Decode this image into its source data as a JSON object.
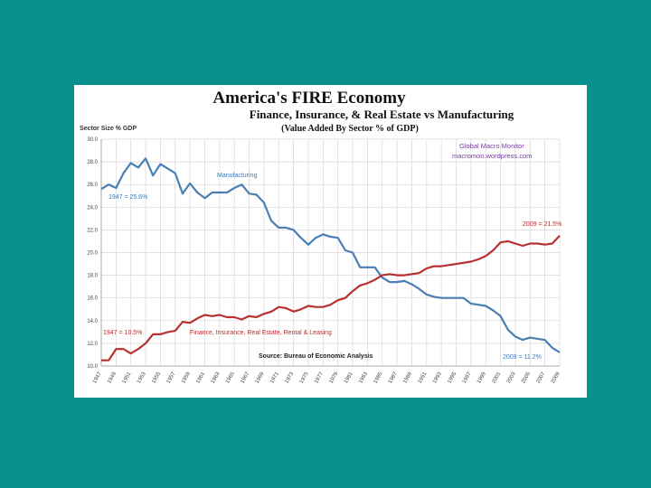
{
  "colors": {
    "background": "#0a8f8f",
    "manufacturing": "#4a7fb3",
    "fire": "#b8302f",
    "grid": "#d8d8d8"
  },
  "chart_data": {
    "type": "line",
    "title": "America's FIRE Economy",
    "subtitle": "Finance, Insurance, & Real Estate vs Manufacturing",
    "subtitle2": "(Value Added By Sector % of GDP)",
    "ylabel": "Sector Size % GDP",
    "xlabel": "",
    "ylim": [
      10,
      30
    ],
    "yticks": [
      10,
      12,
      14,
      16,
      18,
      20,
      22,
      24,
      26,
      28,
      30
    ],
    "ytick_labels": [
      "10.0",
      "12.0",
      "14.0",
      "16.0",
      "18.0",
      "20.0",
      "22.0",
      "24.0",
      "26.0",
      "28.0",
      "30.0"
    ],
    "xlim": [
      1947,
      2009
    ],
    "xtick_labels": [
      "1947",
      "1949",
      "1951",
      "1953",
      "1955",
      "1957",
      "1959",
      "1961",
      "1963",
      "1965",
      "1967",
      "1969",
      "1971",
      "1973",
      "1975",
      "1977",
      "1979",
      "1981",
      "1983",
      "1985",
      "1987",
      "1989",
      "1991",
      "1993",
      "1995",
      "1997",
      "1999",
      "2001",
      "2003",
      "2005",
      "2007",
      "2009"
    ],
    "grid": true,
    "x": [
      1947,
      1948,
      1949,
      1950,
      1951,
      1952,
      1953,
      1954,
      1955,
      1956,
      1957,
      1958,
      1959,
      1960,
      1961,
      1962,
      1963,
      1964,
      1965,
      1966,
      1967,
      1968,
      1969,
      1970,
      1971,
      1972,
      1973,
      1974,
      1975,
      1976,
      1977,
      1978,
      1979,
      1980,
      1981,
      1982,
      1983,
      1984,
      1985,
      1986,
      1987,
      1988,
      1989,
      1990,
      1991,
      1992,
      1993,
      1994,
      1995,
      1996,
      1997,
      1998,
      1999,
      2000,
      2001,
      2002,
      2003,
      2004,
      2005,
      2006,
      2007,
      2008,
      2009
    ],
    "series": [
      {
        "name": "Manufacturing",
        "values": [
          25.6,
          26.0,
          25.7,
          27.0,
          27.9,
          27.5,
          28.3,
          26.8,
          27.8,
          27.4,
          27.0,
          25.2,
          26.1,
          25.3,
          24.8,
          25.3,
          25.3,
          25.3,
          25.7,
          26.0,
          25.2,
          25.1,
          24.4,
          22.8,
          22.2,
          22.2,
          22.0,
          21.3,
          20.7,
          21.3,
          21.6,
          21.4,
          21.3,
          20.2,
          20.0,
          18.7,
          18.7,
          18.7,
          17.8,
          17.4,
          17.4,
          17.5,
          17.2,
          16.8,
          16.3,
          16.1,
          16.0,
          16.0,
          16.0,
          16.0,
          15.5,
          15.4,
          15.3,
          14.9,
          14.4,
          13.2,
          12.6,
          12.3,
          12.5,
          12.4,
          12.3,
          11.6,
          11.2
        ]
      },
      {
        "name": "Finance, Insurance, Real Estate, Rental & Leasing",
        "values": [
          10.5,
          10.5,
          11.5,
          11.5,
          11.1,
          11.5,
          12.0,
          12.8,
          12.8,
          13.0,
          13.1,
          13.9,
          13.8,
          14.2,
          14.5,
          14.4,
          14.5,
          14.3,
          14.3,
          14.1,
          14.4,
          14.3,
          14.6,
          14.8,
          15.2,
          15.1,
          14.8,
          15.0,
          15.3,
          15.2,
          15.2,
          15.4,
          15.8,
          16.0,
          16.6,
          17.1,
          17.3,
          17.6,
          18.0,
          18.1,
          18.0,
          18.0,
          18.1,
          18.2,
          18.6,
          18.8,
          18.8,
          18.9,
          19.0,
          19.1,
          19.2,
          19.4,
          19.7,
          20.2,
          20.9,
          21.0,
          20.8,
          20.6,
          20.8,
          20.8,
          20.7,
          20.8,
          21.5
        ]
      }
    ],
    "annotations": {
      "series_label_manufacturing": "Manufacturing",
      "series_label_fire": "Finance, Insurance, Real Estate, Rental & Leasing",
      "mfg_start": "1947 = 25.6%",
      "mfg_end": "2009 = 11.2%",
      "fire_start": "1947 = 10.5%",
      "fire_end": "2009 = 21.5%",
      "source": "Source:  Bureau of Economic Analysis",
      "credit_line1": "Global Macro Monitor",
      "credit_line2": "macromon.wordpress.com"
    }
  }
}
